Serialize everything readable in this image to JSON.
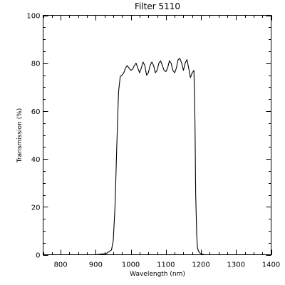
{
  "chart_data": {
    "type": "line",
    "title": "Filter 5110",
    "xlabel": "Wavelength (nm)",
    "ylabel": "Transmission (%)",
    "xlim": [
      750,
      1400
    ],
    "ylim": [
      0,
      100
    ],
    "x_ticks": [
      800,
      900,
      1000,
      1100,
      1200,
      1300,
      1400
    ],
    "y_ticks": [
      0,
      20,
      40,
      60,
      80,
      100
    ],
    "grid": false,
    "series": [
      {
        "color": "#000000",
        "x": [
          750,
          900,
          930,
          945,
          950,
          955,
          960,
          965,
          970,
          975,
          980,
          985,
          990,
          995,
          1000,
          1005,
          1010,
          1015,
          1020,
          1025,
          1030,
          1035,
          1040,
          1045,
          1050,
          1055,
          1060,
          1065,
          1070,
          1075,
          1080,
          1085,
          1090,
          1095,
          1100,
          1105,
          1110,
          1115,
          1120,
          1125,
          1130,
          1135,
          1140,
          1145,
          1150,
          1155,
          1160,
          1165,
          1170,
          1175,
          1180,
          1183,
          1185,
          1188,
          1190,
          1193,
          1196,
          1200,
          1205,
          1210,
          1220,
          1250,
          1400
        ],
        "y": [
          0,
          0,
          0.5,
          2,
          6,
          20,
          45,
          68,
          74.5,
          75,
          76,
          78,
          79,
          78,
          77,
          77.5,
          79,
          80,
          78,
          76,
          78,
          80.5,
          79,
          75,
          76,
          79,
          80.5,
          79,
          76,
          77,
          80,
          81,
          79,
          77,
          76.5,
          78,
          81,
          80,
          77,
          76,
          78,
          81.5,
          82,
          80,
          77,
          80,
          81.5,
          78,
          74,
          76,
          77,
          55,
          25,
          8,
          3,
          1.5,
          0.8,
          0.5,
          0.2,
          0,
          0,
          0,
          0
        ]
      }
    ]
  }
}
